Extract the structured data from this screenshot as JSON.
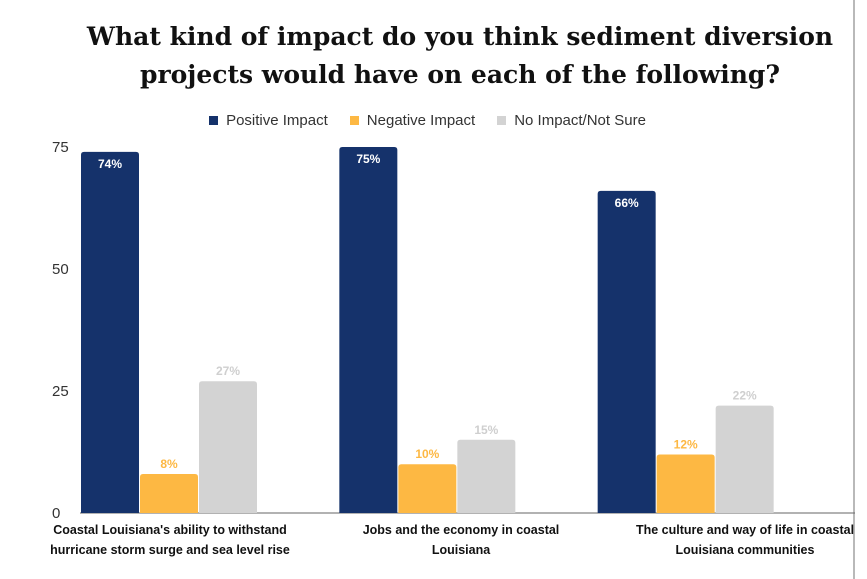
{
  "chart_data": {
    "type": "bar",
    "title": "What kind of impact do you think sediment diversion projects would have on each of the following?",
    "categories": [
      "Coastal Louisiana's ability to withstand hurricane storm surge and sea level rise",
      "Jobs and the economy in coastal Louisiana",
      "The culture and way of life in coastal Louisiana communities"
    ],
    "series": [
      {
        "name": "Positive Impact",
        "color": "#15326b",
        "values": [
          74,
          75,
          66
        ],
        "labels": [
          "74%",
          "75%",
          "66%"
        ],
        "label_position": "inside",
        "label_color": "#ffffff"
      },
      {
        "name": "Negative Impact",
        "color": "#fdb843",
        "values": [
          8,
          10,
          12
        ],
        "labels": [
          "8%",
          "10%",
          "12%"
        ],
        "label_position": "above",
        "label_color": "#fdb843"
      },
      {
        "name": "No Impact/Not Sure",
        "color": "#d3d3d3",
        "values": [
          27,
          15,
          22
        ],
        "labels": [
          "27%",
          "15%",
          "22%"
        ],
        "label_position": "above",
        "label_color": "#cfcfcf"
      }
    ],
    "ylim": [
      0,
      75
    ],
    "yticks": [
      0,
      25,
      50,
      75
    ],
    "ytick_labels": [
      "0",
      "25",
      "50",
      "75"
    ],
    "legend": "top-center",
    "grid": false
  }
}
